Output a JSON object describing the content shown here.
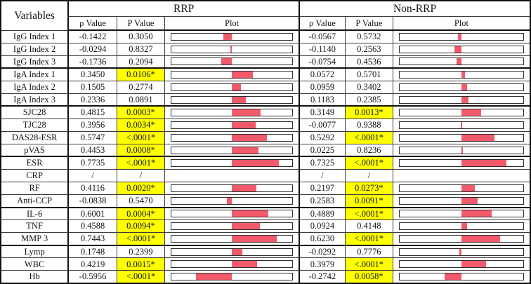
{
  "colors": {
    "highlight": "#ffff00",
    "bar_fill": "#f2596b",
    "plot_outline": "#2f2f2f"
  },
  "table": {
    "corner_header": "Variables",
    "section_headers": {
      "rrp": "RRP",
      "nonrrp": "Non-RRP"
    },
    "subheaders": {
      "rho": "ρ Value",
      "p": "P Value",
      "plot": "Plot"
    }
  },
  "chart_data": {
    "type": "table",
    "title": "Correlation table with inline bar plots of ρ values for RRP and Non-RRP groups",
    "plot_axis_range": [
      -1,
      1
    ],
    "plot_bar_meaning": "bar extends from 0 at center to the ρ value",
    "columns": [
      "Variables",
      "RRP ρ Value",
      "RRP P Value",
      "RRP Plot",
      "Non-RRP ρ Value",
      "Non-RRP P Value",
      "Non-RRP Plot"
    ],
    "rows": [
      {
        "variable": "IgG Index 1",
        "rrp": {
          "rho": "-0.1422",
          "p": "0.3050"
        },
        "nonrrp": {
          "rho": "-0.0567",
          "p": "0.5732"
        }
      },
      {
        "variable": "IgG Index 2",
        "rrp": {
          "rho": "-0.0294",
          "p": "0.8327"
        },
        "nonrrp": {
          "rho": "-0.1140",
          "p": "0.2563"
        }
      },
      {
        "variable": "IgG Index 3",
        "rrp": {
          "rho": "-0.1736",
          "p": "0.2094"
        },
        "nonrrp": {
          "rho": "-0.0754",
          "p": "0.4536"
        }
      },
      {
        "variable": "IgA Index 1",
        "rrp": {
          "rho": "0.3450",
          "p": "0.0106*"
        },
        "nonrrp": {
          "rho": "0.0572",
          "p": "0.5701"
        }
      },
      {
        "variable": "IgA Index 2",
        "rrp": {
          "rho": "0.1505",
          "p": "0.2774"
        },
        "nonrrp": {
          "rho": "0.0959",
          "p": "0.3402"
        }
      },
      {
        "variable": "IgA Index 3",
        "rrp": {
          "rho": "0.2336",
          "p": "0.0891"
        },
        "nonrrp": {
          "rho": "0.1183",
          "p": "0.2385"
        }
      },
      {
        "variable": "SJC28",
        "rrp": {
          "rho": "0.4815",
          "p": "0.0003*"
        },
        "nonrrp": {
          "rho": "0.3149",
          "p": "0.0013*"
        }
      },
      {
        "variable": "TJC28",
        "rrp": {
          "rho": "0.3956",
          "p": "0.0034*"
        },
        "nonrrp": {
          "rho": "-0.0077",
          "p": "0.9388"
        }
      },
      {
        "variable": "DAS28-ESR",
        "rrp": {
          "rho": "0.5747",
          "p": "<.0001*"
        },
        "nonrrp": {
          "rho": "0.5292",
          "p": "<.0001*"
        }
      },
      {
        "variable": "pVAS",
        "rrp": {
          "rho": "0.4453",
          "p": "0.0008*"
        },
        "nonrrp": {
          "rho": "0.0225",
          "p": "0.8236"
        }
      },
      {
        "variable": "ESR",
        "rrp": {
          "rho": "0.7735",
          "p": "<.0001*"
        },
        "nonrrp": {
          "rho": "0.7325",
          "p": "<.0001*"
        }
      },
      {
        "variable": "CRP",
        "rrp": {
          "rho": "/",
          "p": "/"
        },
        "nonrrp": {
          "rho": "/",
          "p": "/"
        }
      },
      {
        "variable": "RF",
        "rrp": {
          "rho": "0.4116",
          "p": "0.0020*"
        },
        "nonrrp": {
          "rho": "0.2197",
          "p": "0.0273*"
        }
      },
      {
        "variable": "Anti-CCP",
        "rrp": {
          "rho": "-0.0838",
          "p": "0.5470"
        },
        "nonrrp": {
          "rho": "0.2583",
          "p": "0.0091*"
        }
      },
      {
        "variable": "IL-6",
        "rrp": {
          "rho": "0.6001",
          "p": "0.0004*"
        },
        "nonrrp": {
          "rho": "0.4889",
          "p": "<.0001*"
        }
      },
      {
        "variable": "TNF",
        "rrp": {
          "rho": "0.4588",
          "p": "0.0094*"
        },
        "nonrrp": {
          "rho": "0.0924",
          "p": "0.4148"
        }
      },
      {
        "variable": "MMP 3",
        "rrp": {
          "rho": "0.7443",
          "p": "<.0001*"
        },
        "nonrrp": {
          "rho": "0.6230",
          "p": "<.0001*"
        }
      },
      {
        "variable": "Lymp",
        "rrp": {
          "rho": "0.1748",
          "p": "0.2399"
        },
        "nonrrp": {
          "rho": "-0.0292",
          "p": "0.7776"
        }
      },
      {
        "variable": "WBC",
        "rrp": {
          "rho": "0.4219",
          "p": "0.0015*"
        },
        "nonrrp": {
          "rho": "0.3979",
          "p": "<.0001*"
        }
      },
      {
        "variable": "Hb",
        "rrp": {
          "rho": "-0.5956",
          "p": "<.0001*"
        },
        "nonrrp": {
          "rho": "-0.2742",
          "p": "0.0058*"
        }
      }
    ]
  }
}
